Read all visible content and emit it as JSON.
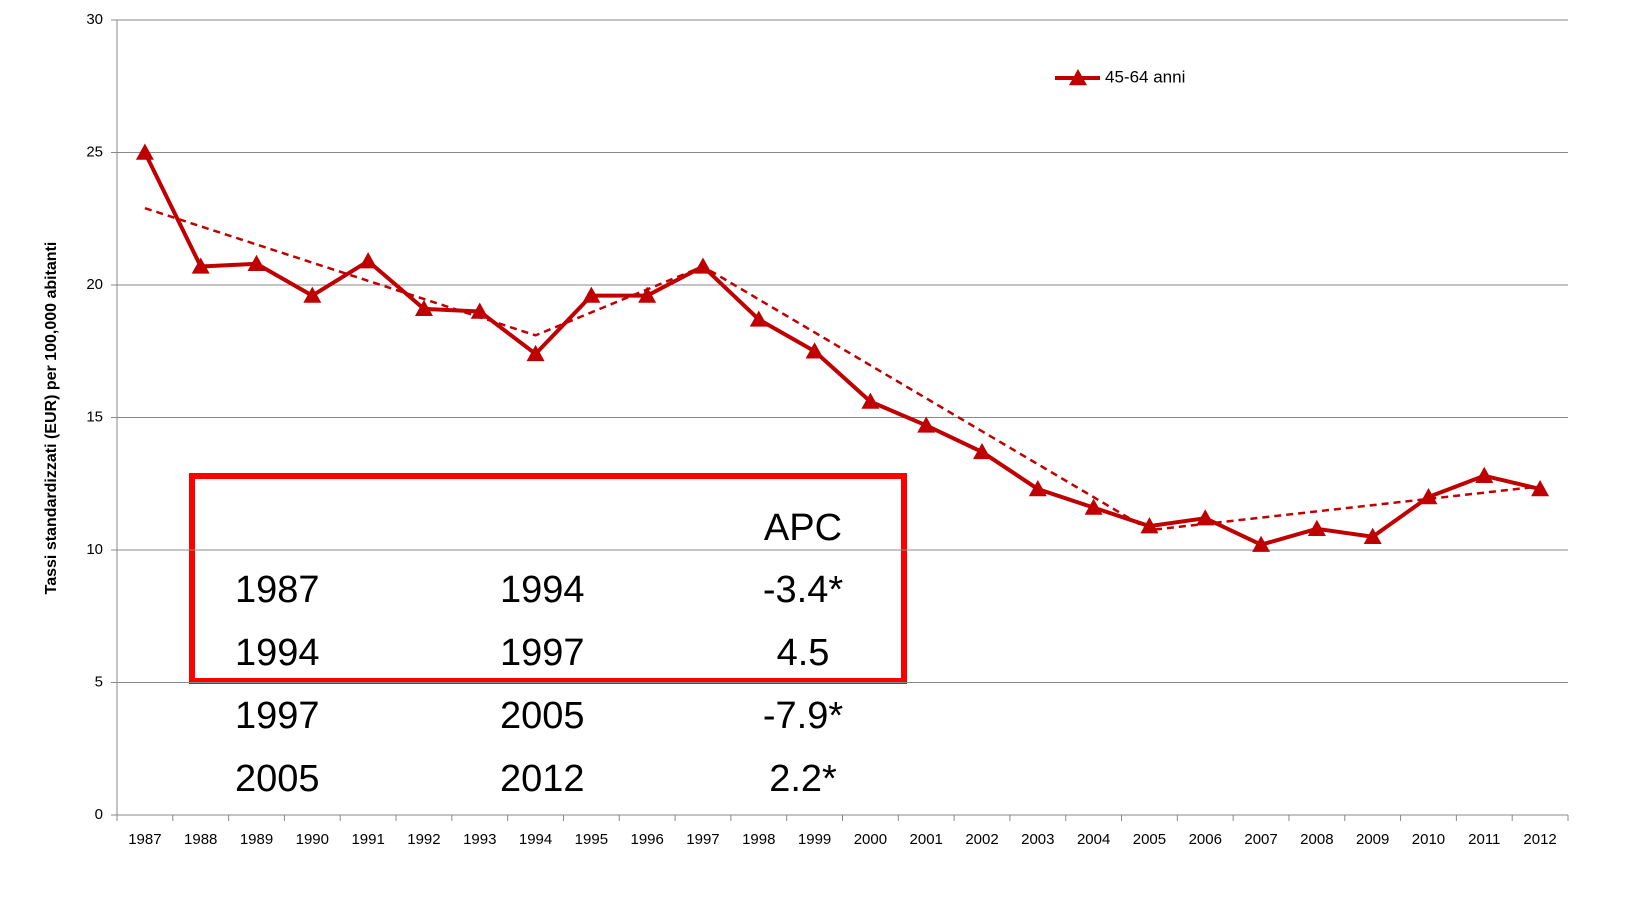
{
  "chart_data": {
    "type": "line",
    "y_label": "Tassi standardizzati  (EUR) per 100,000 abitanti",
    "categories": [
      "1987",
      "1988",
      "1989",
      "1990",
      "1991",
      "1992",
      "1993",
      "1994",
      "1995",
      "1996",
      "1997",
      "1998",
      "1999",
      "2000",
      "2001",
      "2002",
      "2003",
      "2004",
      "2005",
      "2006",
      "2007",
      "2008",
      "2009",
      "2010",
      "2011",
      "2012"
    ],
    "series": [
      {
        "name": "45-64 anni",
        "color": "#c00000",
        "values": [
          25.0,
          20.7,
          20.8,
          19.6,
          20.9,
          19.1,
          19.0,
          17.4,
          19.6,
          19.6,
          20.7,
          18.7,
          17.5,
          15.6,
          14.7,
          13.7,
          12.3,
          11.6,
          10.9,
          11.2,
          10.2,
          10.8,
          10.5,
          12.0,
          12.8,
          12.3
        ]
      }
    ],
    "trend_line": {
      "color": "#c00000",
      "x": [
        1987,
        1994,
        1997,
        2005,
        2012
      ],
      "values": [
        22.9,
        18.1,
        20.7,
        10.75,
        12.4
      ]
    },
    "ylim": [
      0,
      30
    ],
    "yticks": [
      0,
      5,
      10,
      15,
      20,
      25,
      30
    ],
    "grid": true,
    "legend": "top-right",
    "apc_table": {
      "header": "APC",
      "rows": [
        [
          "1987",
          "1994",
          "-3.4*"
        ],
        [
          "1994",
          "1997",
          "4.5"
        ],
        [
          "1997",
          "2005",
          "-7.9*"
        ],
        [
          "2005",
          "2012",
          "2.2*"
        ]
      ]
    }
  }
}
